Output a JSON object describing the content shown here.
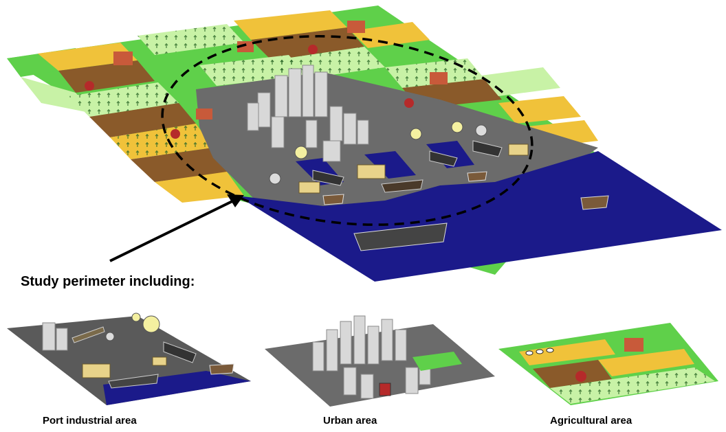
{
  "study_label": "Study perimeter including:",
  "panels": [
    {
      "label": "Port industrial area"
    },
    {
      "label": "Urban area"
    },
    {
      "label": "Agricultural area"
    }
  ],
  "colors": {
    "water": "#1b1a8a",
    "port_ground": "#5a5a5a",
    "urban_ground": "#6b6b6b",
    "field_green": "#5fd04a",
    "field_light": "#c8f2a6",
    "field_yellow": "#f0c23a",
    "field_brown": "#8a5a2a",
    "building": "#d8d8d8"
  },
  "icons": [
    "barn-icon",
    "tractor-icon",
    "cow-icon",
    "tree-icon",
    "building-icon",
    "ship-icon",
    "factory-icon",
    "storage-tank-icon",
    "perimeter-ellipse",
    "arrow-icon"
  ]
}
